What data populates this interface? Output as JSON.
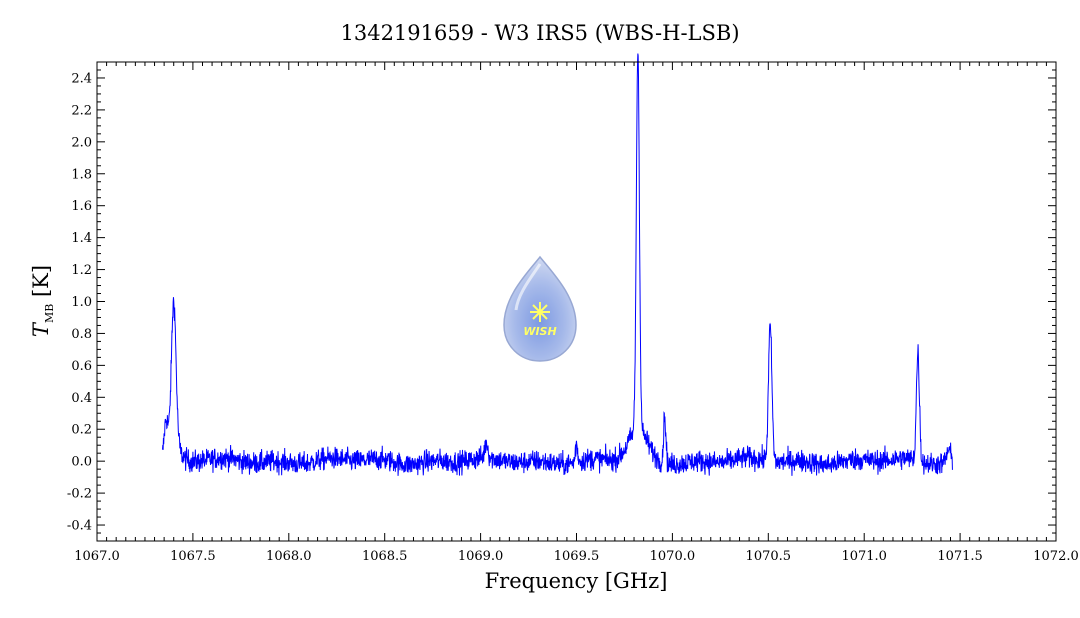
{
  "chart_data": {
    "type": "line",
    "title": "1342191659 - W3 IRS5 (WBS-H-LSB)",
    "xlabel": "Frequency [GHz]",
    "ylabel": {
      "symbol": "T",
      "subscript": "MB",
      "unit": "[K]"
    },
    "xlim": [
      1067.0,
      1072.0
    ],
    "ylim": [
      -0.5,
      2.5
    ],
    "xticks": [
      "1067.0",
      "1067.5",
      "1068.0",
      "1068.5",
      "1069.0",
      "1069.5",
      "1070.0",
      "1070.5",
      "1071.0",
      "1071.5",
      "1072.0"
    ],
    "yticks": [
      "-0.4",
      "-0.2",
      "0.0",
      "0.2",
      "0.4",
      "0.6",
      "0.8",
      "1.0",
      "1.2",
      "1.4",
      "1.6",
      "1.8",
      "2.0",
      "2.2",
      "2.4"
    ],
    "grid": false,
    "line_color": "#0000ff",
    "series": [
      {
        "x_range": [
          1067.34,
          1071.46
        ],
        "noise_rms": 0.035,
        "peaks": [
          {
            "x": 1067.4,
            "y": 0.9,
            "width": 0.012
          },
          {
            "x": 1067.36,
            "y": 0.22,
            "width": 0.01
          },
          {
            "x": 1069.03,
            "y": 0.1,
            "width": 0.008
          },
          {
            "x": 1069.5,
            "y": 0.11,
            "width": 0.006
          },
          {
            "x": 1069.82,
            "y": 2.38,
            "width": 0.008
          },
          {
            "x": 1069.96,
            "y": 0.3,
            "width": 0.006
          },
          {
            "x": 1070.51,
            "y": 0.85,
            "width": 0.009
          },
          {
            "x": 1071.28,
            "y": 0.68,
            "width": 0.008
          },
          {
            "x": 1071.44,
            "y": 0.08,
            "width": 0.01
          }
        ],
        "wings": [
          {
            "x": 1069.82,
            "y": 0.18,
            "width": 0.05
          },
          {
            "x": 1067.4,
            "y": 0.1,
            "width": 0.03
          }
        ]
      }
    ]
  },
  "logo": {
    "text": "WISH",
    "color": "#a9bde6"
  }
}
